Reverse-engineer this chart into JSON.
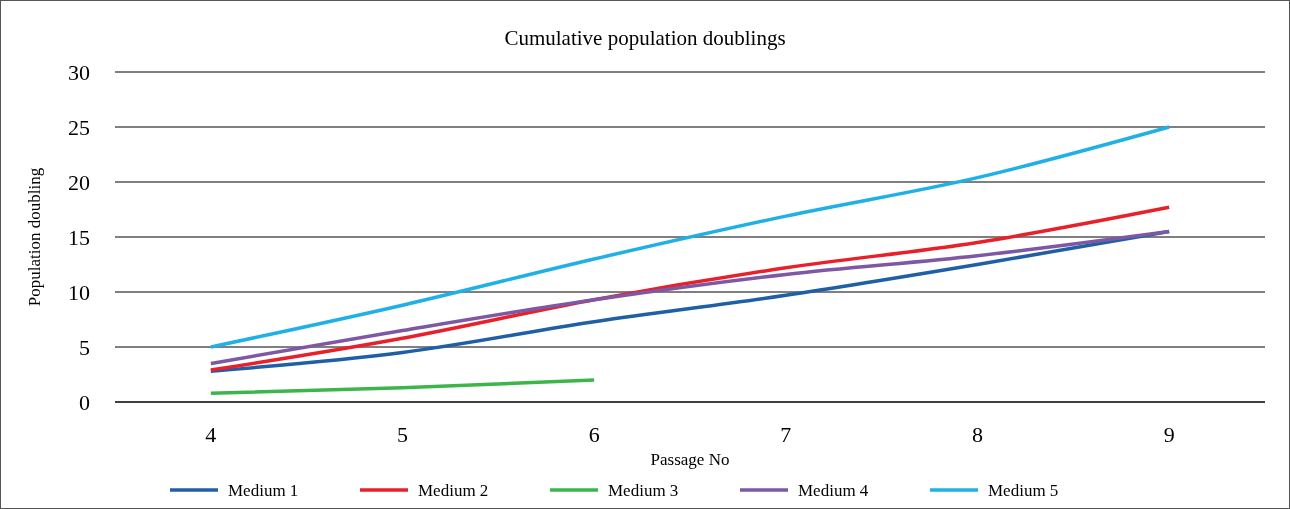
{
  "chart_data": {
    "type": "line",
    "title": "Cumulative population doublings",
    "xlabel": "Passage No",
    "ylabel": "Population doubling",
    "categories": [
      "4",
      "5",
      "6",
      "7",
      "8",
      "9"
    ],
    "series": [
      {
        "name": "Medium 1",
        "color": "#1f5fa6",
        "values": [
          2.8,
          4.5,
          7.3,
          9.7,
          12.5,
          15.5
        ]
      },
      {
        "name": "Medium 2",
        "color": "#e8202a",
        "values": [
          2.9,
          5.8,
          9.3,
          12.2,
          14.5,
          17.7
        ]
      },
      {
        "name": "Medium 3",
        "color": "#3cb64a",
        "values": [
          0.8,
          1.3,
          2.0,
          null,
          null,
          null
        ]
      },
      {
        "name": "Medium 4",
        "color": "#7e58a4",
        "values": [
          3.5,
          6.5,
          9.3,
          11.6,
          13.3,
          15.5
        ]
      },
      {
        "name": "Medium 5",
        "color": "#1fb0e6",
        "values": [
          5.0,
          8.8,
          13.0,
          16.9,
          20.4,
          25.0
        ]
      }
    ],
    "ylim": [
      0,
      30
    ],
    "yticks": [
      0,
      5,
      10,
      15,
      20,
      25,
      30
    ],
    "grid": "y",
    "legend": "bottom",
    "marker": "none",
    "line_style": "solid"
  }
}
